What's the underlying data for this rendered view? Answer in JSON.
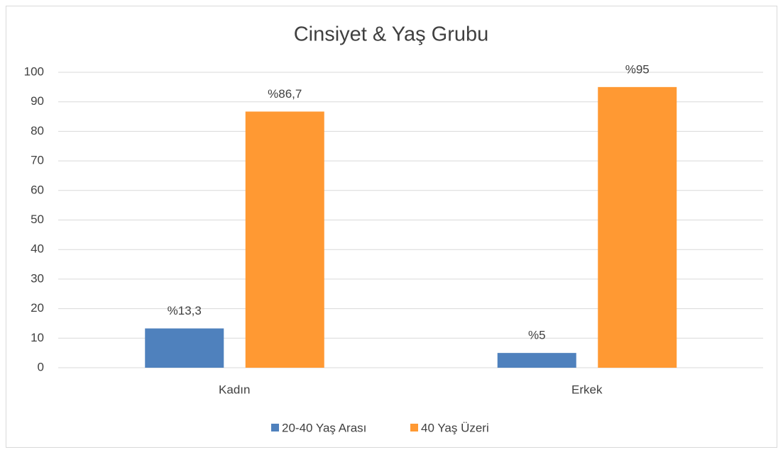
{
  "chart_data": {
    "type": "bar",
    "title": "Cinsiyet & Yaş Grubu",
    "categories": [
      "Kadın",
      "Erkek"
    ],
    "series": [
      {
        "name": "20-40 Yaş Arası",
        "color": "#4f81bd",
        "values": [
          13.3,
          5
        ],
        "value_labels": [
          "%13,3",
          "%5"
        ]
      },
      {
        "name": "40 Yaş Üzeri",
        "color": "#ff9933",
        "values": [
          86.7,
          95
        ],
        "value_labels": [
          "%86,7",
          "%95"
        ]
      }
    ],
    "ylim": [
      0,
      100
    ],
    "yticks": [
      0,
      10,
      20,
      30,
      40,
      50,
      60,
      70,
      80,
      90,
      100
    ],
    "grid": true,
    "legend": "bottom"
  }
}
